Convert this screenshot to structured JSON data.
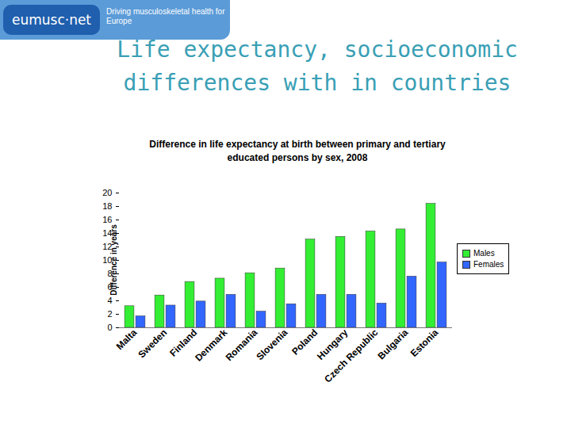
{
  "header": {
    "logo": "eumusc·net",
    "tagline": "Driving musculoskeletal health for Europe",
    "slide_title": "Life expectancy, socioeconomic differences with in countries"
  },
  "chart_data": {
    "type": "bar",
    "title": "Difference in life expectancy at birth between primary and tertiary educated persons by sex, 2008",
    "y_label": "Difference in years",
    "categories": [
      "Malta",
      "Sweden",
      "Finland",
      "Denmark",
      "Romania",
      "Slovenia",
      "Poland",
      "Hungary",
      "Czech Republic",
      "Bulgaria",
      "Estonia"
    ],
    "series": [
      {
        "name": "Males",
        "color": "#33ee33",
        "values": [
          3.2,
          4.8,
          6.8,
          7.3,
          8.1,
          8.8,
          13.1,
          13.5,
          14.3,
          14.6,
          18.4
        ]
      },
      {
        "name": "Females",
        "color": "#3366ff",
        "values": [
          1.7,
          3.3,
          3.9,
          4.9,
          2.4,
          3.5,
          4.9,
          4.9,
          3.6,
          7.6,
          9.7
        ]
      }
    ],
    "ylim": [
      0,
      20
    ],
    "yticks": [
      0,
      2,
      4,
      6,
      8,
      10,
      12,
      14,
      16,
      18,
      20
    ],
    "grid": false,
    "legend": "right"
  }
}
